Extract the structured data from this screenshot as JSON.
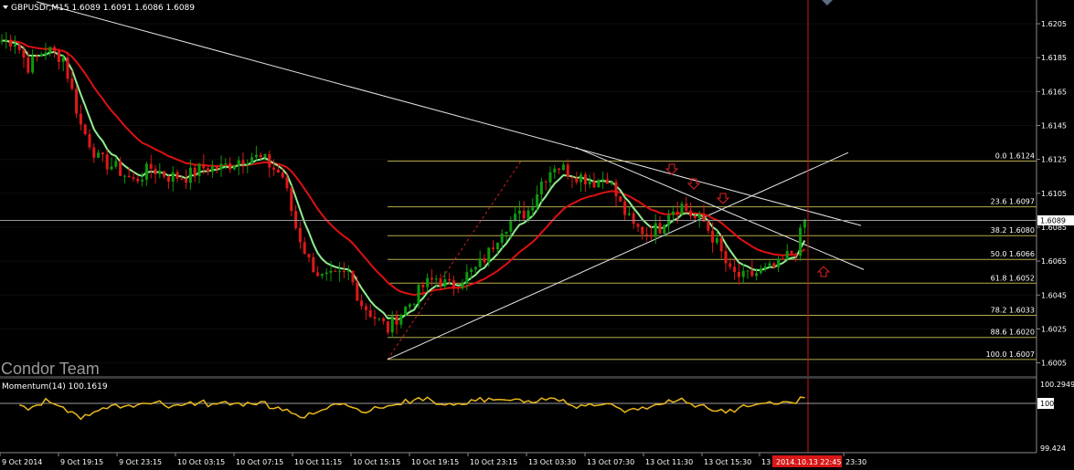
{
  "chart_data": [
    {
      "type": "candlestick",
      "header": "GBPUSDr,M15  1.6089 1.6091 1.6086 1.6089",
      "y_ticks": [
        1.6205,
        1.6185,
        1.6165,
        1.6145,
        1.6125,
        1.6105,
        1.6085,
        1.6065,
        1.6045,
        1.6025,
        1.6005
      ],
      "ylim": [
        1.6001,
        1.6212
      ],
      "current_price": 1.6089,
      "current_price_label": "1.6089",
      "x_tick_labels": [
        "9 Oct 2014",
        "9 Oct 19:15",
        "9 Oct 23:15",
        "10 Oct 03:15",
        "10 Oct 07:15",
        "10 Oct 11:15",
        "10 Oct 15:15",
        "10 Oct 19:15",
        "10 Oct 23:15",
        "13 Oct 03:30",
        "13 Oct 07:30",
        "13 Oct 11:30",
        "13 Oct 15:30",
        "13",
        "23:30"
      ],
      "cursor_time_label": "2014.10.13 22:45",
      "fibonacci": {
        "start": 1.6124,
        "end": 1.6007,
        "levels": [
          {
            "label": "0.0  1.6124",
            "pct": 0.0,
            "price": 1.6124
          },
          {
            "label": "23.6  1.6097",
            "pct": 23.6,
            "price": 1.6097
          },
          {
            "label": "38.2  1.6080",
            "pct": 38.2,
            "price": 1.608
          },
          {
            "label": "50.0  1.6066",
            "pct": 50.0,
            "price": 1.6066
          },
          {
            "label": "61.8  1.6052",
            "pct": 61.8,
            "price": 1.6052
          },
          {
            "label": "78.2  1.6033",
            "pct": 78.2,
            "price": 1.6033
          },
          {
            "label": "88.6  1.6020",
            "pct": 88.6,
            "price": 1.602
          },
          {
            "label": "100.0  1.6007",
            "pct": 100.0,
            "price": 1.6007
          }
        ]
      },
      "price_path": [
        [
          0,
          1.6195
        ],
        [
          3,
          1.6195
        ],
        [
          6,
          1.618
        ],
        [
          10,
          1.619
        ],
        [
          14,
          1.6185
        ],
        [
          18,
          1.6145
        ],
        [
          22,
          1.6125
        ],
        [
          26,
          1.612
        ],
        [
          30,
          1.6112
        ],
        [
          34,
          1.612
        ],
        [
          38,
          1.6115
        ],
        [
          42,
          1.6115
        ],
        [
          46,
          1.612
        ],
        [
          50,
          1.612
        ],
        [
          54,
          1.6125
        ],
        [
          57,
          1.6127
        ],
        [
          60,
          1.6124
        ],
        [
          64,
          1.6115
        ],
        [
          67,
          1.6085
        ],
        [
          70,
          1.6065
        ],
        [
          73,
          1.6055
        ],
        [
          76,
          1.6055
        ],
        [
          79,
          1.6058
        ],
        [
          82,
          1.604
        ],
        [
          85,
          1.6032
        ],
        [
          88,
          1.6025
        ],
        [
          90,
          1.6032
        ],
        [
          93,
          1.604
        ],
        [
          96,
          1.605
        ],
        [
          99,
          1.6055
        ],
        [
          102,
          1.605
        ],
        [
          105,
          1.6055
        ],
        [
          108,
          1.606
        ],
        [
          111,
          1.607
        ],
        [
          114,
          1.6085
        ],
        [
          117,
          1.609
        ],
        [
          120,
          1.6095
        ],
        [
          123,
          1.6112
        ],
        [
          126,
          1.6122
        ],
        [
          129,
          1.6118
        ],
        [
          132,
          1.6115
        ],
        [
          135,
          1.6112
        ],
        [
          138,
          1.6115
        ],
        [
          141,
          1.6098
        ],
        [
          144,
          1.6085
        ],
        [
          147,
          1.6082
        ],
        [
          150,
          1.6085
        ],
        [
          152,
          1.6095
        ],
        [
          155,
          1.6098
        ],
        [
          158,
          1.609
        ],
        [
          160,
          1.6088
        ],
        [
          163,
          1.6075
        ],
        [
          166,
          1.6058
        ],
        [
          169,
          1.6055
        ],
        [
          172,
          1.6058
        ],
        [
          175,
          1.606
        ],
        [
          177,
          1.6062
        ],
        [
          179,
          1.6068
        ],
        [
          181,
          1.6072
        ],
        [
          183,
          1.6089
        ]
      ],
      "ma_fast_color": "#90ee90",
      "ma_slow_color": "#dd1111",
      "candle_up_color": "#0c9a0c",
      "candle_down_color": "#e01818",
      "indicator": {
        "label": "Momentum(14) 100.1619",
        "y_ticks": [
          "100.2949",
          "100",
          "99.424"
        ],
        "ylim": [
          99.424,
          100.2949
        ],
        "color": "#e8b81b"
      },
      "watermark": "Condor Team"
    }
  ]
}
